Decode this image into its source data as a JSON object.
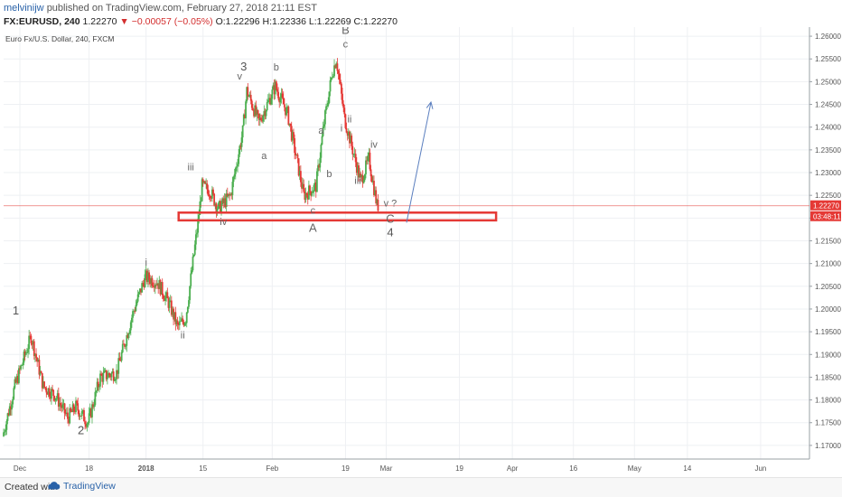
{
  "header": {
    "author": "melvinijw",
    "published_text": "published on TradingView.com, February 27, 2018 21:11 EST",
    "symbol": "FX:EURUSD, 240",
    "last": "1.22270",
    "change": "▼ −0.00057 (−0.05%)",
    "ohlc": "O:1.22296 H:1.22336 L:1.22269 C:1.22270"
  },
  "chart_data": {
    "type": "candlestick",
    "title": "Euro Fx/U.S. Dollar, 240, FXCM",
    "ylim": [
      1.167,
      1.262
    ],
    "y_ticks": [
      "1.26000",
      "1.25500",
      "1.25000",
      "1.24500",
      "1.24000",
      "1.23500",
      "1.23000",
      "1.22500",
      "1.22000",
      "1.21500",
      "1.21000",
      "1.20500",
      "1.20000",
      "1.19500",
      "1.19000",
      "1.18500",
      "1.18000",
      "1.17500",
      "1.17000"
    ],
    "x_ticks": [
      "Dec",
      "18",
      "2018",
      "15",
      "Feb",
      "19",
      "Mar",
      "19",
      "Apr",
      "16",
      "May",
      "14",
      "Jun"
    ],
    "x_tick_dates": [
      "2017-12-01",
      "2017-12-18",
      "2018-01-01",
      "2018-01-15",
      "2018-02-01",
      "2018-02-19",
      "2018-03-01",
      "2018-03-19",
      "2018-04-01",
      "2018-04-16",
      "2018-05-01",
      "2018-05-14",
      "2018-06-01"
    ],
    "x_range": [
      "2017-11-27",
      "2018-06-13"
    ],
    "price_path": [
      {
        "date": "2017-11-27",
        "price": 1.172
      },
      {
        "date": "2017-11-30",
        "price": 1.183
      },
      {
        "date": "2017-12-04",
        "price": 1.194
      },
      {
        "date": "2017-12-07",
        "price": 1.183
      },
      {
        "date": "2017-12-10",
        "price": 1.181
      },
      {
        "date": "2017-12-13",
        "price": 1.176
      },
      {
        "date": "2017-12-15",
        "price": 1.1785
      },
      {
        "date": "2017-12-18",
        "price": 1.175
      },
      {
        "date": "2017-12-21",
        "price": 1.185
      },
      {
        "date": "2017-12-25",
        "price": 1.186
      },
      {
        "date": "2017-12-29",
        "price": 1.199
      },
      {
        "date": "2018-01-01",
        "price": 1.207
      },
      {
        "date": "2018-01-04",
        "price": 1.206
      },
      {
        "date": "2018-01-07",
        "price": 1.201
      },
      {
        "date": "2018-01-09",
        "price": 1.196
      },
      {
        "date": "2018-01-11",
        "price": 1.198
      },
      {
        "date": "2018-01-14",
        "price": 1.219
      },
      {
        "date": "2018-01-15",
        "price": 1.227
      },
      {
        "date": "2018-01-17",
        "price": 1.226
      },
      {
        "date": "2018-01-19",
        "price": 1.222
      },
      {
        "date": "2018-01-22",
        "price": 1.225
      },
      {
        "date": "2018-01-25",
        "price": 1.239
      },
      {
        "date": "2018-01-26",
        "price": 1.248
      },
      {
        "date": "2018-01-29",
        "price": 1.241
      },
      {
        "date": "2018-01-31",
        "price": 1.245
      },
      {
        "date": "2018-02-02",
        "price": 1.249
      },
      {
        "date": "2018-02-05",
        "price": 1.243
      },
      {
        "date": "2018-02-07",
        "price": 1.234
      },
      {
        "date": "2018-02-09",
        "price": 1.225
      },
      {
        "date": "2018-02-12",
        "price": 1.227
      },
      {
        "date": "2018-02-14",
        "price": 1.241
      },
      {
        "date": "2018-02-16",
        "price": 1.252
      },
      {
        "date": "2018-02-17",
        "price": 1.255
      },
      {
        "date": "2018-02-19",
        "price": 1.242
      },
      {
        "date": "2018-02-21",
        "price": 1.235
      },
      {
        "date": "2018-02-23",
        "price": 1.228
      },
      {
        "date": "2018-02-25",
        "price": 1.233
      },
      {
        "date": "2018-02-27",
        "price": 1.2227
      }
    ],
    "support_zone": {
      "start": "2018-01-09",
      "end": "2018-03-28",
      "low": 1.2195,
      "high": 1.2212,
      "color": "#e53935"
    },
    "projection_arrow": {
      "from": {
        "date": "2018-03-06",
        "price": 1.219
      },
      "to": {
        "date": "2018-03-12",
        "price": 1.2455
      },
      "color": "#5b7fbf"
    },
    "last_price_label": "1.22270",
    "countdown_label": "03:48:11",
    "last_price_color": "#e53935",
    "up_color": "#4caf50",
    "down_color": "#e53935",
    "grid": true,
    "wave_labels": [
      {
        "text": "1",
        "date": "2017-11-30",
        "price": 1.1988
      },
      {
        "text": "2",
        "date": "2017-12-16",
        "price": 1.1725
      },
      {
        "text": "i",
        "date": "2018-01-01",
        "price": 1.2095
      },
      {
        "text": "ii",
        "date": "2018-01-10",
        "price": 1.1935
      },
      {
        "text": "iii",
        "date": "2018-01-12",
        "price": 1.2305
      },
      {
        "text": "iv",
        "date": "2018-01-20",
        "price": 1.2185
      },
      {
        "text": "3",
        "date": "2018-01-25",
        "price": 1.2525
      },
      {
        "text": "v",
        "date": "2018-01-24",
        "price": 1.2505
      },
      {
        "text": "a",
        "date": "2018-01-30",
        "price": 1.233
      },
      {
        "text": "b",
        "date": "2018-02-02",
        "price": 1.2525
      },
      {
        "text": "a",
        "date": "2018-02-13",
        "price": 1.2385
      },
      {
        "text": "b",
        "date": "2018-02-15",
        "price": 1.229
      },
      {
        "text": "c",
        "date": "2018-02-11",
        "price": 1.221
      },
      {
        "text": "A",
        "date": "2018-02-11",
        "price": 1.217
      },
      {
        "text": "B",
        "date": "2018-02-19",
        "price": 1.2605
      },
      {
        "text": "c",
        "date": "2018-02-19",
        "price": 1.2575
      },
      {
        "text": "i",
        "date": "2018-02-18",
        "price": 1.239
      },
      {
        "text": "ii",
        "date": "2018-02-20",
        "price": 1.241
      },
      {
        "text": "iii",
        "date": "2018-02-22",
        "price": 1.2275
      },
      {
        "text": "iv",
        "date": "2018-02-26",
        "price": 1.2355
      },
      {
        "text": "v ?",
        "date": "2018-03-02",
        "price": 1.2225
      },
      {
        "text": "C",
        "date": "2018-03-02",
        "price": 1.219
      },
      {
        "text": "4",
        "date": "2018-03-02",
        "price": 1.216
      }
    ]
  },
  "footer": {
    "created_with": "Created with",
    "brand": "TradingView"
  }
}
